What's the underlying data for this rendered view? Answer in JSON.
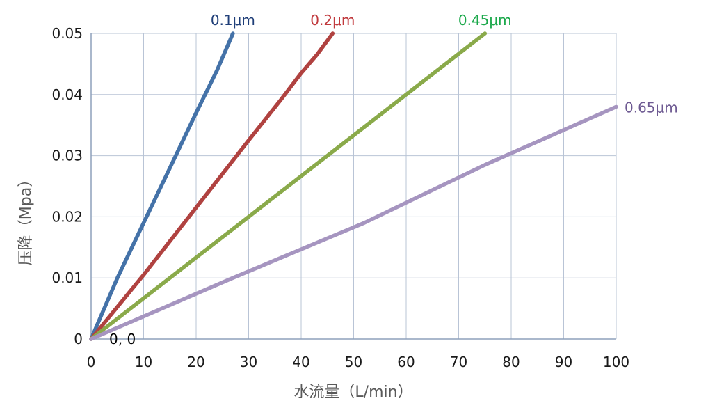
{
  "chart_data": {
    "type": "line",
    "xlabel": "水流量（L/min）",
    "ylabel": "压降（Mpa）",
    "xlim": [
      0,
      100
    ],
    "ylim": [
      0,
      0.05
    ],
    "x_ticks": [
      "0",
      "10",
      "20",
      "30",
      "40",
      "50",
      "60",
      "70",
      "80",
      "90",
      "100"
    ],
    "y_ticks": [
      "0",
      "0.01",
      "0.02",
      "0.03",
      "0.04",
      "0.05"
    ],
    "grid": true,
    "annotation": "0, 0",
    "series": [
      {
        "name": "0.1μm",
        "color": "#4472a8",
        "points": [
          [
            0,
            0
          ],
          [
            5,
            0.01
          ],
          [
            10,
            0.019
          ],
          [
            15,
            0.028
          ],
          [
            20,
            0.037
          ],
          [
            24,
            0.044
          ],
          [
            27,
            0.05
          ]
        ]
      },
      {
        "name": "0.2μm",
        "color": "#b04240",
        "points": [
          [
            0,
            0
          ],
          [
            10,
            0.0105
          ],
          [
            20,
            0.0215
          ],
          [
            30,
            0.0325
          ],
          [
            36,
            0.039
          ],
          [
            40,
            0.0435
          ],
          [
            43,
            0.0465
          ],
          [
            46,
            0.05
          ]
        ]
      },
      {
        "name": "0.45μm",
        "color": "#8aaa4a",
        "points": [
          [
            0,
            0
          ],
          [
            15,
            0.01
          ],
          [
            30,
            0.02
          ],
          [
            45,
            0.03
          ],
          [
            60,
            0.04
          ],
          [
            75,
            0.05
          ]
        ]
      },
      {
        "name": "0.65μm",
        "color": "#a695c0",
        "points": [
          [
            0,
            0
          ],
          [
            27,
            0.01
          ],
          [
            52,
            0.019
          ],
          [
            75,
            0.0285
          ],
          [
            100,
            0.038
          ]
        ]
      }
    ],
    "label_colors": [
      "#1f3e78",
      "#c0383c",
      "#1aa84a",
      "#6e5a92"
    ]
  }
}
